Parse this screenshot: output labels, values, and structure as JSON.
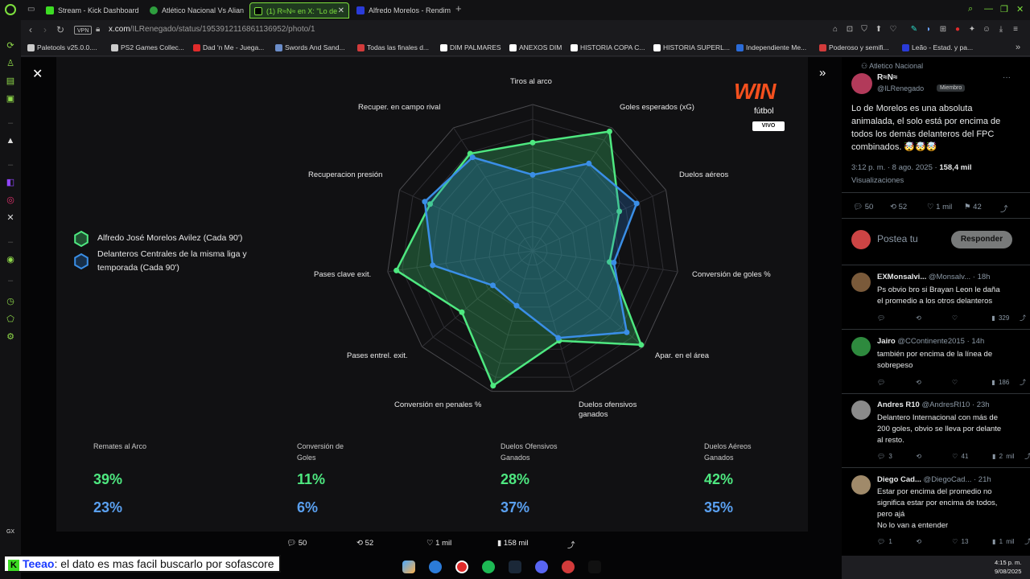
{
  "browser": {
    "tabs": [
      {
        "label": "Stream - Kick Dashboard"
      },
      {
        "label": "Atlético Nacional Vs Alian"
      },
      {
        "label": "(1) R≈N≈ en X: \"Lo de"
      },
      {
        "label": "Alfredo Morelos - Rendim"
      }
    ],
    "new_tab": "+",
    "vpn": "VPN",
    "url_host": "x.com",
    "url_path": "/ILRenegado/status/1953912116861136952/photo/1",
    "bookmarks": [
      "Paletools v25.0.0....",
      "PS2 Games Collec...",
      "Dad 'n Me - Juega...",
      "Swords And Sand...",
      "Todas las finales d...",
      "DIM PALMARES",
      "ANEXOS DIM",
      "HISTORIA COPA C...",
      "HISTORIA SUPERL...",
      "Independiente Me...",
      "Poderoso y semifi...",
      "Leão - Estad. y pa..."
    ]
  },
  "radar": {
    "axes": [
      "Tiros al arco",
      "Goles esperados (xG)",
      "Duelos aéreos",
      "Conversión de goles %",
      "Apar. en el área",
      "Duelos ofensivos ganados",
      "Conversión en penales %",
      "Pases entrel. exit.",
      "Pases clave exit.",
      "Recuperacion presión",
      "Recuper. en campo rival"
    ],
    "series": [
      {
        "name": "Alfredo José Morelos Avilez (Cada 90')",
        "color": "#4ee880",
        "values": [
          0.74,
          0.97,
          0.65,
          0.53,
          0.98,
          0.64,
          0.96,
          0.64,
          0.94,
          0.77,
          0.79
        ]
      },
      {
        "name": "Delanteros Centrales de la misma liga y temporada (Cada 90')",
        "color": "#3a8ee6",
        "values": [
          0.52,
          0.71,
          0.78,
          0.56,
          0.85,
          0.62,
          0.39,
          0.36,
          0.69,
          0.81,
          0.76
        ]
      }
    ]
  },
  "legend": {
    "green": "Alfredo José Morelos Avilez (Cada 90')",
    "blue_line1": "Delanteros Centrales de la misma liga y",
    "blue_line2": "temporada (Cada 90')"
  },
  "broadcaster": {
    "logo": "WIN",
    "sub": "fútbol",
    "badge": "VIVO"
  },
  "stats": [
    {
      "title": "Remates al Arco",
      "green": "39%",
      "blue": "23%"
    },
    {
      "title": "Conversión de Goles",
      "green": "11%",
      "blue": "6%"
    },
    {
      "title": "Duelos Ofensivos Ganados",
      "green": "28%",
      "blue": "37%"
    },
    {
      "title": "Duelos Aéreos Ganados",
      "green": "42%",
      "blue": "35%"
    }
  ],
  "viewer_bar": {
    "replies": "50",
    "reposts": "52",
    "likes": "1 mil",
    "views": "158 mil"
  },
  "post": {
    "community": "Atletico Nacional",
    "author": "R≈N≈",
    "handle": "@ILRenegado",
    "badge": "Miembro",
    "text": "Lo de Morelos es una absoluta animalada, el solo está por encima de todos los demás delanteros del FPC combinados. 🤯🤯🤯",
    "time": "3:12 p. m. · 8 ago. 2025 ·",
    "views": "158,4 mil",
    "views_label": "Visualizaciones",
    "replies": "50",
    "reposts": "52",
    "likes": "1 mil",
    "bookmarks": "42",
    "reply_placeholder": "Postea tu",
    "reply_button": "Responder"
  },
  "replies": [
    {
      "name": "EXMonsalvi...",
      "handle": "@Monsalv...",
      "time": "· 18h",
      "text": [
        "Ps obvio bro si Brayan Leon le daña",
        "el promedio a los otros delanteros"
      ],
      "replies": "",
      "reposts": "",
      "likes": "",
      "views": "329"
    },
    {
      "name": "Jairo",
      "handle": "@CContinente2015",
      "time": "· 14h",
      "text": [
        "también por encima de la línea de",
        "sobrepeso"
      ],
      "replies": "",
      "reposts": "",
      "likes": "",
      "views": "186"
    },
    {
      "name": "Andres R10",
      "handle": "@AndresRI10",
      "time": "· 23h",
      "text": [
        "Delantero Internacional con más de",
        "200 goles, obvio se lleva por delante",
        "al resto."
      ],
      "replies": "3",
      "reposts": "",
      "likes": "41",
      "views": "2 mil"
    },
    {
      "name": "Diego Cad...",
      "handle": "@DiegoCad...",
      "time": "· 21h",
      "text": [
        "Estar por encima del promedio no",
        "significa estar por encima de todos,",
        "pero ajá",
        "No lo van a entender"
      ],
      "replies": "1",
      "reposts": "",
      "likes": "13",
      "views": "1 mil"
    }
  ],
  "overlay": {
    "user": "Teeao",
    "message": ": el dato es mas facil buscarlo por sofascore"
  },
  "clock": {
    "time": "4:15 p. m.",
    "date": "9/08/2025"
  }
}
